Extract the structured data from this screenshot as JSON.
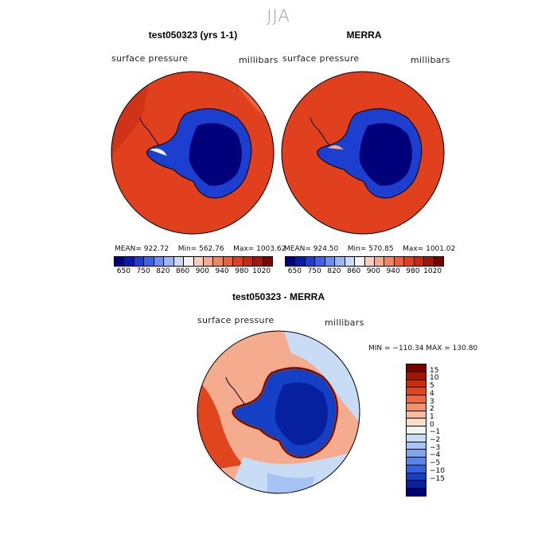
{
  "title": "JJA",
  "panels": [
    {
      "name": "model",
      "title": "test050323 (yrs 1-1)",
      "variable": "surface pressure",
      "units": "millibars",
      "mean_label": "MEAN=",
      "mean": "922.72",
      "min_label": "Min=",
      "min": "562.76",
      "max_label": "Max=",
      "max": "1003.62"
    },
    {
      "name": "obs",
      "title": "MERRA",
      "variable": "surface pressure",
      "units": "millibars",
      "mean_label": "MEAN=",
      "mean": "924.50",
      "min_label": "Min=",
      "min": "570.85",
      "max_label": "Max=",
      "max": "1001.02"
    }
  ],
  "colorbar": {
    "colors": [
      "#00007a",
      "#0a1aa8",
      "#1c3fd0",
      "#3a63e6",
      "#6b8ef0",
      "#9cb6f6",
      "#cbdaf9",
      "#f3f3f3",
      "#f9d0be",
      "#f5ab8e",
      "#ef8660",
      "#e9603a",
      "#e0401e",
      "#c82a10",
      "#a01608",
      "#7a0000"
    ],
    "ticks": [
      "650",
      "750",
      "820",
      "860",
      "900",
      "940",
      "980",
      "1020"
    ]
  },
  "difference": {
    "title": "test050323 - MERRA",
    "variable": "surface pressure",
    "units": "millibars",
    "minmax": "MIN = −110.34 MAX = 130.80",
    "colors": [
      "#7a0000",
      "#a31505",
      "#c92b0c",
      "#e0451d",
      "#ee6a3e",
      "#f5926a",
      "#f9bb9c",
      "#fbdcc8",
      "#f3f3f3",
      "#c9dcf6",
      "#a6c3f3",
      "#7ea6ef",
      "#5485ea",
      "#2f62df",
      "#1440c6",
      "#0620a0",
      "#000079"
    ],
    "ticks": [
      "15",
      "10",
      "5",
      "4",
      "3",
      "2",
      "1",
      "0",
      "−1",
      "−2",
      "−3",
      "−4",
      "−5",
      "−10",
      "−15"
    ]
  },
  "map_colors": {
    "ocean_high": "#e0401e",
    "ocean_edge": "#cf3418",
    "ice_deep": "#00007a",
    "ice_mid": "#1c3fd0",
    "ice_edge": "#6b8ef0",
    "diff_neg": "#a6c3f3",
    "diff_pos": "#f5ab8e"
  }
}
